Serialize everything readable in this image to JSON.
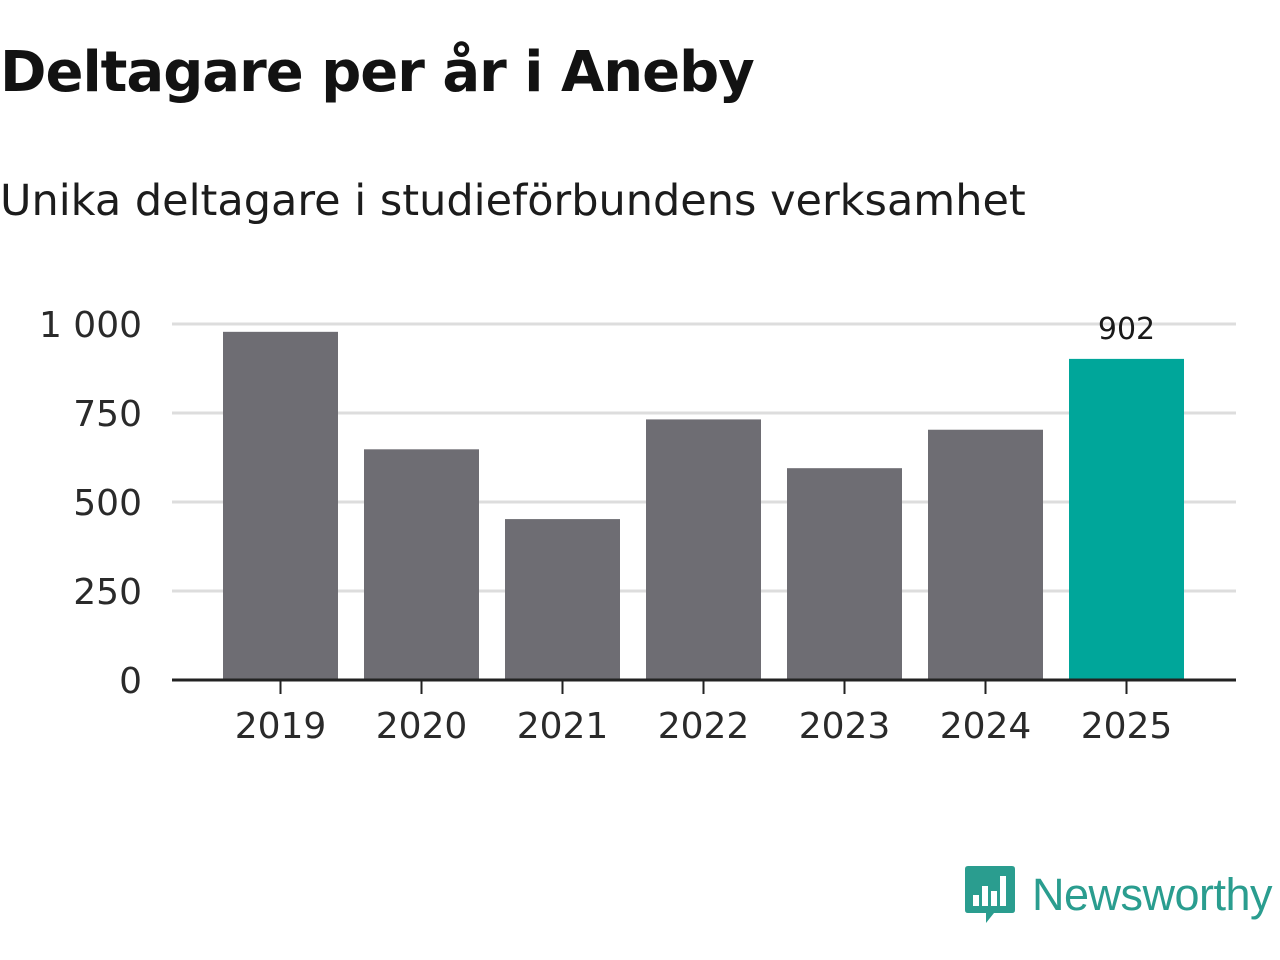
{
  "title": "Deltagare per år i Aneby",
  "subtitle": "Unika deltagare i studieförbundens verksamhet",
  "brand": {
    "name": "Newsworthy",
    "icon": "newsworthy-logo-icon",
    "color": "#2a9d8f"
  },
  "colors": {
    "bar": "#6e6d73",
    "highlight": "#00a69a",
    "grid": "#dddddd",
    "axis": "#222222"
  },
  "chart_data": {
    "type": "bar",
    "categories": [
      "2019",
      "2020",
      "2021",
      "2022",
      "2023",
      "2024",
      "2025"
    ],
    "values": [
      978,
      648,
      452,
      732,
      595,
      703,
      902
    ],
    "highlight_index": 6,
    "data_labels": [
      null,
      null,
      null,
      null,
      null,
      null,
      "902"
    ],
    "yticks": [
      0,
      250,
      500,
      750,
      1000
    ],
    "ytick_labels": [
      "0",
      "250",
      "500",
      "750",
      "1 000"
    ],
    "ylim": [
      0,
      1000
    ],
    "xlabel": "",
    "ylabel": "",
    "grid": true,
    "legend": "none"
  }
}
